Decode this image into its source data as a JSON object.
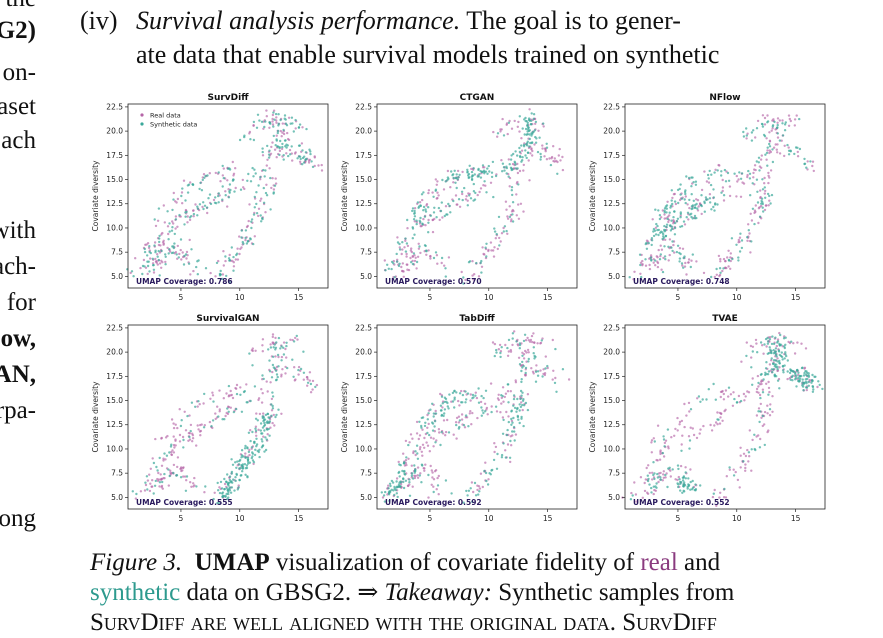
{
  "left_column": [
    "the",
    "G2)",
    "on-",
    "aset",
    "ach",
    "with",
    "ach-",
    "for",
    "ow,",
    "AN,",
    "rpa-",
    "ong"
  ],
  "intro": {
    "number": "(iv)",
    "title": "Survival analysis performance.",
    "line1_rest": "The goal is to gener-",
    "line2": "ate data that enable survival models trained on synthetic"
  },
  "colors": {
    "real": "#b565a7",
    "synthetic": "#3aa89a",
    "coverage_text": "#2a1a5e"
  },
  "axis_text": {
    "ylabel": "Covariate diversity",
    "coverage_label": "UMAP Coverage:"
  },
  "legend": {
    "real": "Real data",
    "synthetic": "Synthetic data"
  },
  "chart_data": [
    {
      "type": "scatter",
      "title": "SurvDiff",
      "coverage": "0.786",
      "xticks": [
        5,
        10,
        15
      ],
      "yticks": [
        5.0,
        7.5,
        10.0,
        12.5,
        15.0,
        17.5,
        20.0,
        22.5
      ],
      "xlim": [
        0.5,
        17.5
      ],
      "ylim": [
        3.8,
        22.8
      ],
      "legend": true,
      "series": [
        {
          "name": "Real data"
        },
        {
          "name": "Synthetic data"
        }
      ]
    },
    {
      "type": "scatter",
      "title": "CTGAN",
      "coverage": "0.570",
      "xticks": [
        5,
        10,
        15
      ],
      "yticks": [
        5.0,
        7.5,
        10.0,
        12.5,
        15.0,
        17.5,
        20.0,
        22.5
      ],
      "xlim": [
        0.5,
        17.5
      ],
      "ylim": [
        3.8,
        22.8
      ],
      "legend": false,
      "series": [
        {
          "name": "Real data"
        },
        {
          "name": "Synthetic data"
        }
      ]
    },
    {
      "type": "scatter",
      "title": "NFlow",
      "coverage": "0.748",
      "xticks": [
        5,
        10,
        15
      ],
      "yticks": [
        5.0,
        7.5,
        10.0,
        12.5,
        15.0,
        17.5,
        20.0,
        22.5
      ],
      "xlim": [
        0.5,
        17.5
      ],
      "ylim": [
        3.8,
        22.8
      ],
      "legend": false,
      "series": [
        {
          "name": "Real data"
        },
        {
          "name": "Synthetic data"
        }
      ]
    },
    {
      "type": "scatter",
      "title": "SurvivalGAN",
      "coverage": "0.555",
      "xticks": [
        5,
        10,
        15
      ],
      "yticks": [
        5.0,
        7.5,
        10.0,
        12.5,
        15.0,
        17.5,
        20.0,
        22.5
      ],
      "xlim": [
        0.5,
        17.5
      ],
      "ylim": [
        3.8,
        22.8
      ],
      "legend": false,
      "series": [
        {
          "name": "Real data"
        },
        {
          "name": "Synthetic data"
        }
      ]
    },
    {
      "type": "scatter",
      "title": "TabDiff",
      "coverage": "0.592",
      "xticks": [
        5,
        10,
        15
      ],
      "yticks": [
        5.0,
        7.5,
        10.0,
        12.5,
        15.0,
        17.5,
        20.0,
        22.5
      ],
      "xlim": [
        0.5,
        17.5
      ],
      "ylim": [
        3.8,
        22.8
      ],
      "legend": false,
      "series": [
        {
          "name": "Real data"
        },
        {
          "name": "Synthetic data"
        }
      ]
    },
    {
      "type": "scatter",
      "title": "TVAE",
      "coverage": "0.552",
      "xticks": [
        5,
        10,
        15
      ],
      "yticks": [
        5.0,
        7.5,
        10.0,
        12.5,
        15.0,
        17.5,
        20.0,
        22.5
      ],
      "xlim": [
        0.5,
        17.5
      ],
      "ylim": [
        3.8,
        22.8
      ],
      "legend": false,
      "series": [
        {
          "name": "Real data"
        },
        {
          "name": "Synthetic data"
        }
      ]
    }
  ],
  "caption": {
    "fig_label": "Figure 3.",
    "bold_word": "UMAP",
    "text1": " visualization of covariate fidelity of ",
    "real_word": "real",
    "and_word": " and",
    "synthetic_word": "synthetic",
    "text2": " data on GBSG2. ⇒ ",
    "takeaway": "Takeaway:",
    "text3": " Synthetic samples from",
    "line3": "SurvDiff are well aligned with the original data.  SurvDiff"
  }
}
